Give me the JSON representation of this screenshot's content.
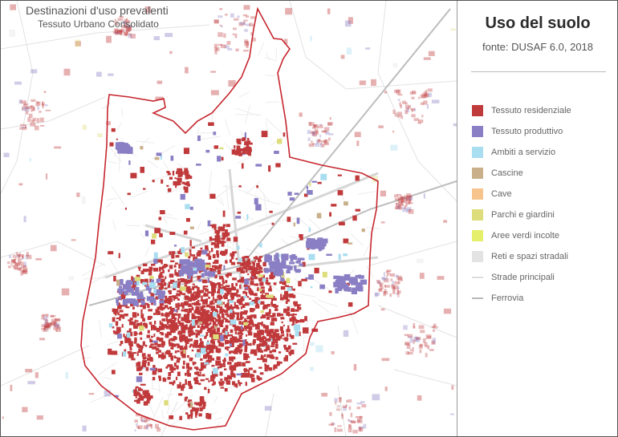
{
  "map": {
    "title": "Destinazioni d'uso prevalenti",
    "subtitle": "Tessuto Urbano Consolidato"
  },
  "panel": {
    "title": "Uso del suolo",
    "source": "fonte: DUSAF 6.0, 2018"
  },
  "legend": [
    {
      "label": "Tessuto residenziale",
      "color": "#c0393b",
      "kind": "box"
    },
    {
      "label": "Tessuto produttivo",
      "color": "#8a7fc4",
      "kind": "box"
    },
    {
      "label": "Ambiti a servizio",
      "color": "#a9ddf0",
      "kind": "box"
    },
    {
      "label": "Cascine",
      "color": "#c9b08a",
      "kind": "box"
    },
    {
      "label": "Cave",
      "color": "#f6c48c",
      "kind": "box"
    },
    {
      "label": "Parchi e giardini",
      "color": "#dedd7c",
      "kind": "box"
    },
    {
      "label": "Aree verdi incolte",
      "color": "#e5ef6a",
      "kind": "box"
    },
    {
      "label": "Reti e spazi stradali",
      "color": "#e3e3e3",
      "kind": "box"
    },
    {
      "label": "Strade principali",
      "color": "#dcdcdc",
      "kind": "line"
    },
    {
      "label": "Ferrovia",
      "color": "#b9b9b9",
      "kind": "line"
    }
  ],
  "boundary_color": "#c6262e"
}
